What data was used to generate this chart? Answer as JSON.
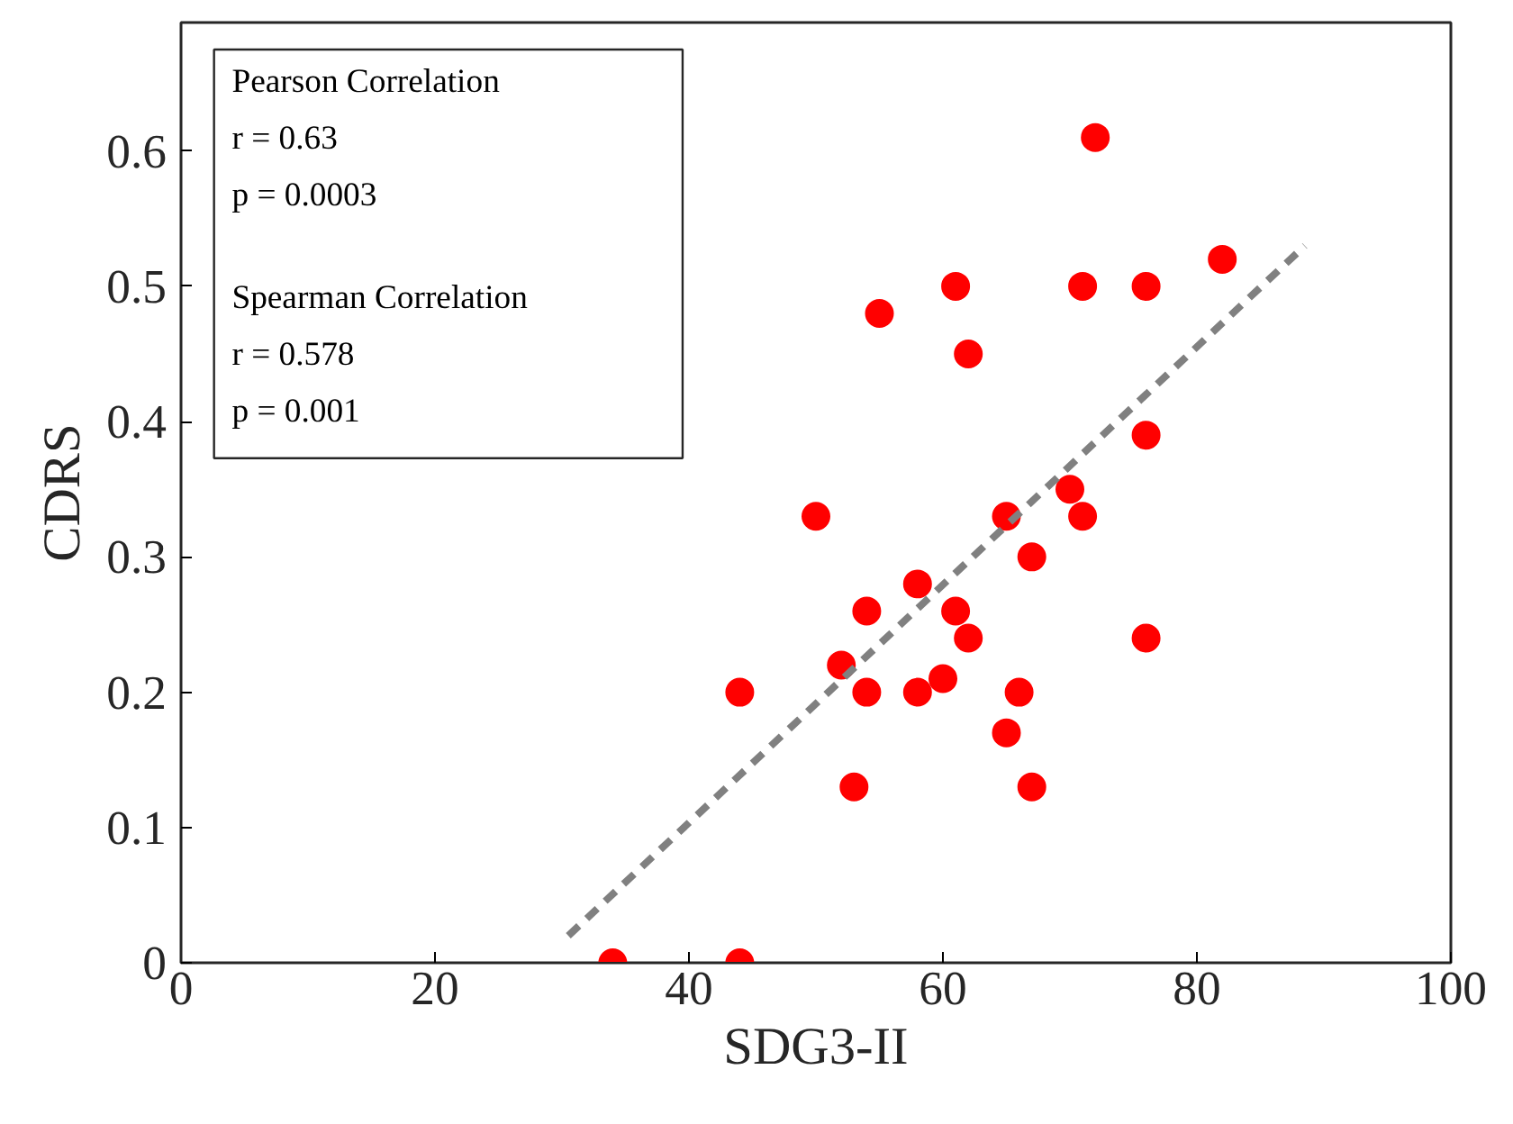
{
  "chart_data": {
    "type": "scatter",
    "xlabel": "SDG3-II",
    "ylabel": "CDRS",
    "xlim": [
      0,
      100
    ],
    "xticks": [
      0,
      20,
      40,
      60,
      80,
      100
    ],
    "ylim": [
      0,
      0.695
    ],
    "yticks": [
      0,
      0.1,
      0.2,
      0.3,
      0.4,
      0.5,
      0.6
    ],
    "grid": false,
    "series": [
      {
        "marker": "circle",
        "color": "#ff0000",
        "x": [
          34,
          44,
          44,
          50,
          72,
          82,
          61,
          71,
          76,
          55,
          62,
          76,
          70,
          65,
          71,
          67,
          58,
          54,
          61,
          62,
          76,
          52,
          60,
          54,
          58,
          66,
          65,
          53,
          67
        ],
        "values": [
          0,
          0,
          0.2,
          0.33,
          0.61,
          0.52,
          0.5,
          0.5,
          0.5,
          0.48,
          0.45,
          0.39,
          0.35,
          0.33,
          0.33,
          0.3,
          0.28,
          0.26,
          0.26,
          0.24,
          0.24,
          0.22,
          0.21,
          0.2,
          0.2,
          0.2,
          0.17,
          0.13,
          0.13
        ]
      },
      {
        "type": "line",
        "color": "#808080",
        "line_style": "dashed",
        "x": [
          30.5,
          88.5
        ],
        "values": [
          0.02,
          0.53
        ]
      }
    ],
    "annotations": [
      "Pearson Correlation\nr = 0.63\np = 0.0003",
      "Spearman Correlation\nr = 0.578\np = 0.001"
    ]
  }
}
